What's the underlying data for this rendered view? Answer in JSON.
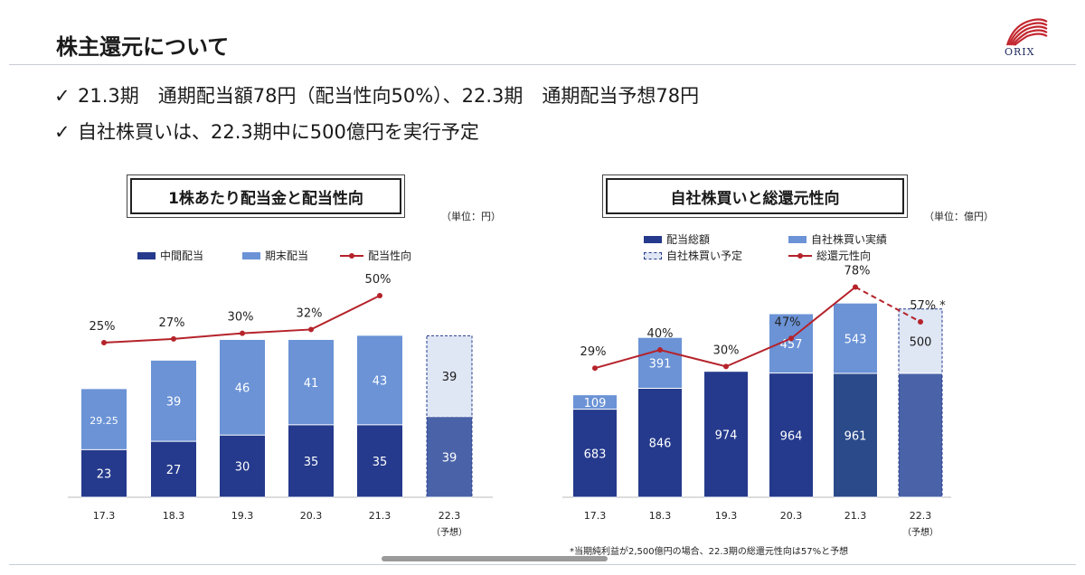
{
  "page": {
    "title": "株主還元について",
    "logo_text": "ORIX",
    "bullets": [
      {
        "check": "✓",
        "text": "21.3期　通期配当額78円（配当性向50%）、22.3期　通期配当予想78円"
      },
      {
        "check": "✓",
        "text": "自社株買いは、22.3期中に500億円を実行予定"
      }
    ],
    "footnote": "*当期純利益が2,500億円の場合、22.3期の総還元性向は57%と予想"
  },
  "colors": {
    "dark_navy": "#253a8c",
    "dark_navy_alt": "#2b4a8a",
    "mid_blue": "#6b93d6",
    "light_dashed": "#dfe6f4",
    "forecast_navy": "#4a63a8",
    "line_red": "#b5232b"
  },
  "chart_data": [
    {
      "type": "bar",
      "stacked": true,
      "title": "1株あたり配当金と配当性向",
      "unit": "（単位：円）",
      "categories": [
        "17.3",
        "18.3",
        "19.3",
        "20.3",
        "21.3",
        "22.3"
      ],
      "category_sublabels": [
        "",
        "",
        "",
        "",
        "",
        "（予想）"
      ],
      "series": [
        {
          "name": "中間配当",
          "values": [
            23,
            27,
            30,
            35,
            35,
            39
          ],
          "labels": [
            "23",
            "27",
            "30",
            "35",
            "35",
            "39"
          ]
        },
        {
          "name": "期末配当",
          "values": [
            29.25,
            39,
            46,
            41,
            43,
            39
          ],
          "labels": [
            "29.25",
            "39",
            "46",
            "41",
            "43",
            "39"
          ]
        }
      ],
      "line": {
        "name": "配当性向",
        "values": [
          25,
          27,
          30,
          32,
          50
        ],
        "labels": [
          "25%",
          "27%",
          "30%",
          "32%",
          "50%"
        ]
      },
      "forecast_index": 5,
      "legend": [
        "中間配当",
        "期末配当",
        "配当性向"
      ]
    },
    {
      "type": "bar",
      "stacked": true,
      "title": "自社株買いと総還元性向",
      "unit": "（単位：億円）",
      "categories": [
        "17.3",
        "18.3",
        "19.3",
        "20.3",
        "21.3",
        "22.3"
      ],
      "category_sublabels": [
        "",
        "",
        "",
        "",
        "",
        "（予想）"
      ],
      "series": [
        {
          "name": "配当総額",
          "values": [
            683,
            846,
            974,
            964,
            961,
            961
          ],
          "labels": [
            "683",
            "846",
            "974",
            "964",
            "961",
            ""
          ]
        },
        {
          "name": "自社株買い実績",
          "values": [
            109,
            391,
            0,
            457,
            543,
            0
          ],
          "labels": [
            "109",
            "391",
            "",
            "457",
            "543",
            ""
          ]
        },
        {
          "name": "自社株買い予定",
          "values": [
            0,
            0,
            0,
            0,
            0,
            500
          ],
          "labels": [
            "",
            "",
            "",
            "",
            "",
            "500"
          ]
        }
      ],
      "line": {
        "name": "総還元性向",
        "values": [
          29,
          40,
          30,
          47,
          78,
          57
        ],
        "labels": [
          "29%",
          "40%",
          "30%",
          "47%",
          "78%",
          "57% *"
        ]
      },
      "forecast_index": 5,
      "legend": [
        "配当総額",
        "自社株買い実績",
        "自社株買い予定",
        "総還元性向"
      ]
    }
  ]
}
